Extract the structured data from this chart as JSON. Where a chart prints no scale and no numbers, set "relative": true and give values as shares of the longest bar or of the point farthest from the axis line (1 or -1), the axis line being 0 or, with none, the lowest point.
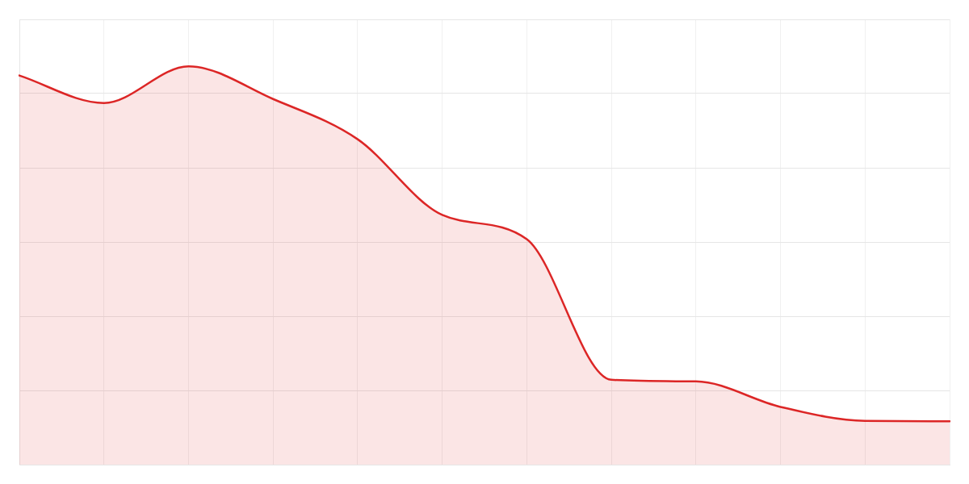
{
  "chart_data": {
    "type": "area",
    "relative": true,
    "categories": [
      null,
      null,
      null,
      null,
      null,
      null,
      null,
      null,
      null,
      null,
      null,
      null
    ],
    "values": [
      0.977,
      0.908,
      1,
      0.918,
      0.817,
      0.627,
      0.566,
      0.213,
      0.209,
      0.145,
      0.11,
      0.109
    ],
    "color": "#dc2626",
    "grid": true,
    "legend": false,
    "marker": "none",
    "line_style": "solid",
    "tick_labels": false
  }
}
